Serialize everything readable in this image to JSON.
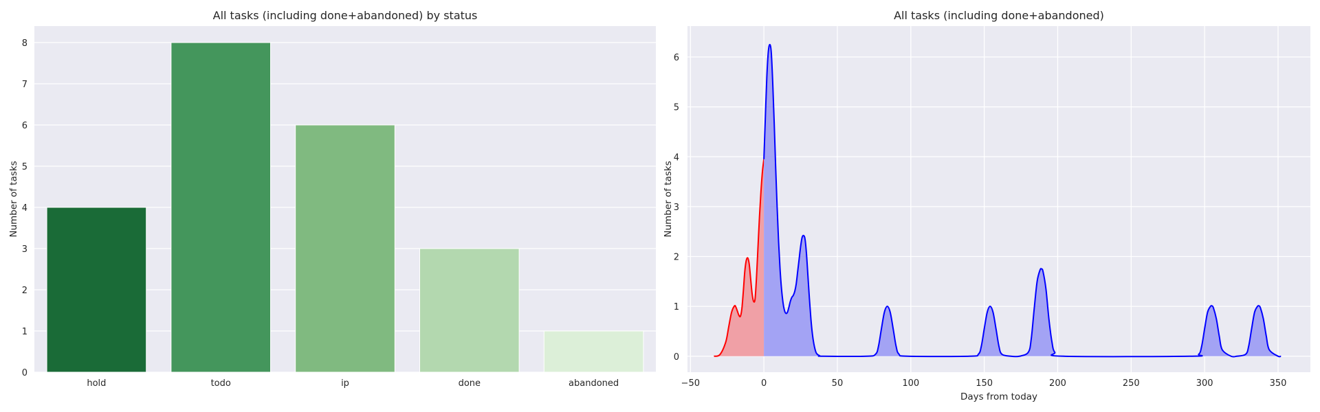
{
  "chart_data": [
    {
      "type": "bar",
      "title": "All tasks (including done+abandoned) by status",
      "xlabel": "",
      "ylabel": "Number of tasks",
      "categories": [
        "hold",
        "todo",
        "ip",
        "done",
        "abandoned"
      ],
      "values": [
        4,
        8,
        6,
        3,
        1
      ],
      "colors": [
        "#1a6b37",
        "#44965c",
        "#80ba80",
        "#b3d8af",
        "#dcefd8"
      ],
      "ylim": [
        0,
        8.4
      ],
      "yticks": [
        0,
        1,
        2,
        3,
        4,
        5,
        6,
        7,
        8
      ],
      "grid": true,
      "background": "#eaeaf2"
    },
    {
      "type": "area",
      "title": "All tasks (including done+abandoned)",
      "xlabel": "Days from today",
      "ylabel": "Number of tasks",
      "xlim": [
        -52,
        372
      ],
      "ylim": [
        -0.32,
        6.62
      ],
      "xticks": [
        -50,
        0,
        50,
        100,
        150,
        200,
        250,
        300,
        350
      ],
      "yticks": [
        0,
        1,
        2,
        3,
        4,
        5,
        6
      ],
      "grid": true,
      "background": "#eaeaf2",
      "series": [
        {
          "color": "#ff0000",
          "fill": "#f0a0a6",
          "x": [
            -34,
            -30,
            -26,
            -24,
            -22,
            -20,
            -19,
            -18,
            -17,
            -16,
            -15,
            -14,
            -13,
            -12,
            -11,
            -10,
            -9,
            -8,
            -7,
            -6,
            -5,
            -4,
            -3,
            -2,
            -1,
            0
          ],
          "y": [
            0.0,
            0.03,
            0.28,
            0.58,
            0.88,
            1.01,
            0.98,
            0.9,
            0.82,
            0.8,
            0.95,
            1.3,
            1.7,
            1.92,
            1.97,
            1.85,
            1.55,
            1.25,
            1.1,
            1.15,
            1.6,
            2.2,
            2.8,
            3.3,
            3.7,
            3.95
          ]
        },
        {
          "color": "#0000ff",
          "fill": "#a3a3f4",
          "x": [
            0,
            1,
            2,
            3,
            4,
            5,
            6,
            7,
            8,
            9,
            10,
            11,
            12,
            13,
            14,
            15,
            16,
            17,
            18,
            19,
            20,
            21,
            22,
            23,
            24,
            25,
            26,
            27,
            28,
            29,
            30,
            31,
            32,
            33,
            34,
            35,
            36,
            38,
            40,
            70,
            76,
            78,
            80,
            82,
            84,
            86,
            88,
            90,
            92,
            98,
            140,
            146,
            148,
            150,
            152,
            154,
            156,
            158,
            160,
            162,
            168,
            174,
            180,
            182,
            184,
            186,
            188,
            189,
            190,
            192,
            194,
            196,
            198,
            204,
            290,
            296,
            298,
            300,
            302,
            304,
            305,
            306,
            308,
            310,
            312,
            318,
            322,
            328,
            330,
            332,
            334,
            336,
            337,
            338,
            340,
            342,
            344,
            350,
            352
          ],
          "y": [
            3.95,
            4.8,
            5.6,
            6.1,
            6.25,
            6.1,
            5.5,
            4.7,
            3.8,
            3.0,
            2.3,
            1.75,
            1.35,
            1.08,
            0.92,
            0.86,
            0.88,
            0.98,
            1.1,
            1.18,
            1.22,
            1.3,
            1.45,
            1.7,
            1.95,
            2.2,
            2.38,
            2.42,
            2.35,
            2.05,
            1.6,
            1.15,
            0.75,
            0.45,
            0.25,
            0.12,
            0.05,
            0.01,
            0.0,
            0.0,
            0.04,
            0.2,
            0.55,
            0.88,
            1.0,
            0.88,
            0.55,
            0.2,
            0.04,
            0.0,
            0.0,
            0.04,
            0.2,
            0.55,
            0.88,
            1.0,
            0.88,
            0.55,
            0.2,
            0.04,
            0.0,
            0.0,
            0.08,
            0.35,
            0.95,
            1.5,
            1.73,
            1.75,
            1.7,
            1.35,
            0.75,
            0.3,
            0.08,
            0.0,
            0.0,
            0.04,
            0.2,
            0.55,
            0.88,
            1.0,
            1.01,
            0.97,
            0.75,
            0.4,
            0.13,
            0.0,
            0.0,
            0.04,
            0.2,
            0.55,
            0.88,
            1.0,
            1.01,
            0.97,
            0.75,
            0.4,
            0.13,
            0.0,
            0.0
          ]
        }
      ]
    }
  ]
}
